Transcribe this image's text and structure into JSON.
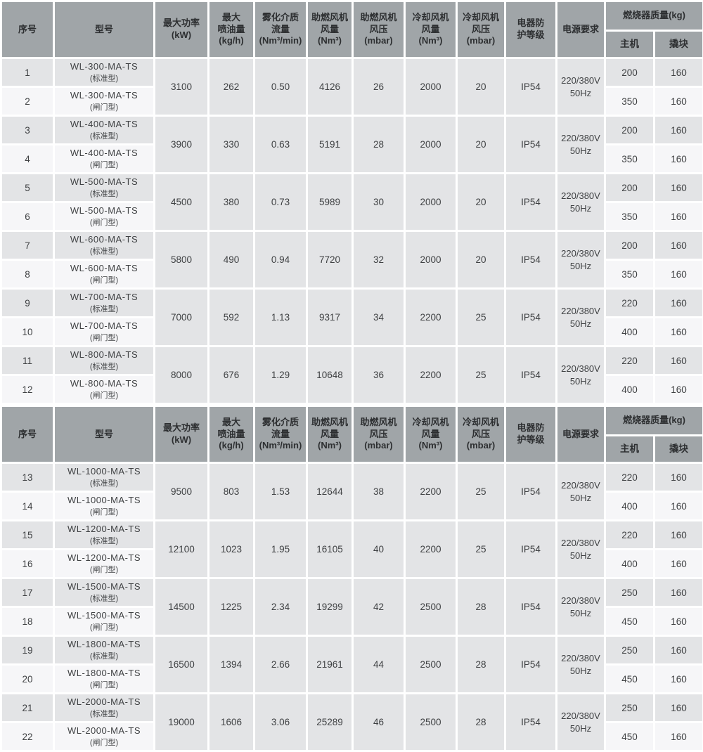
{
  "colors": {
    "header_bg": "#a0a5a8",
    "header_text": "#2d2f31",
    "row_odd_bg": "#e3e4e6",
    "row_even_bg": "#f6f6f8",
    "cell_text": "#3f4143",
    "border": "#ffffff",
    "page_bg": "#ffffff"
  },
  "header": {
    "columns": [
      {
        "key": "seq",
        "lines": [
          "序号"
        ]
      },
      {
        "key": "model",
        "lines": [
          "型号"
        ]
      },
      {
        "key": "power",
        "lines": [
          "最大功率",
          "(kW)"
        ]
      },
      {
        "key": "oil",
        "lines": [
          "最大",
          "喷油量",
          "(kg/h)"
        ]
      },
      {
        "key": "atomizing",
        "lines": [
          "雾化介质",
          "流量",
          "(Nm³/min)"
        ]
      },
      {
        "key": "comb_air",
        "lines": [
          "助燃风机",
          "风量",
          "(Nm³)"
        ]
      },
      {
        "key": "comb_press",
        "lines": [
          "助燃风机",
          "风压",
          "(mbar)"
        ]
      },
      {
        "key": "cool_air",
        "lines": [
          "冷却风机",
          "风量",
          "(Nm³)"
        ]
      },
      {
        "key": "cool_press",
        "lines": [
          "冷却风机",
          "风压",
          "(mbar)"
        ]
      },
      {
        "key": "ip",
        "lines": [
          "电器防",
          "护等级"
        ]
      },
      {
        "key": "psu",
        "lines": [
          "电源要求"
        ]
      },
      {
        "key": "weight",
        "lines": [
          "燃烧器质量(kg)"
        ],
        "sub": [
          "主机",
          "撬块"
        ]
      }
    ]
  },
  "sections": [
    {
      "groups": [
        {
          "rows": [
            {
              "seq": "1",
              "model": "WL-300-MA-TS",
              "variant": "(标准型)",
              "main": "200",
              "skid": "160"
            },
            {
              "seq": "2",
              "model": "WL-300-MA-TS",
              "variant": "(闸门型)",
              "main": "350",
              "skid": "160"
            }
          ],
          "merged": {
            "power": "3100",
            "oil": "262",
            "atomizing": "0.50",
            "comb_air": "4126",
            "comb_press": "26",
            "cool_air": "2000",
            "cool_press": "20",
            "ip": "IP54",
            "psu_lines": [
              "220/380V",
              "50Hz"
            ]
          }
        },
        {
          "rows": [
            {
              "seq": "3",
              "model": "WL-400-MA-TS",
              "variant": "(标准型)",
              "main": "200",
              "skid": "160"
            },
            {
              "seq": "4",
              "model": "WL-400-MA-TS",
              "variant": "(闸门型)",
              "main": "350",
              "skid": "160"
            }
          ],
          "merged": {
            "power": "3900",
            "oil": "330",
            "atomizing": "0.63",
            "comb_air": "5191",
            "comb_press": "28",
            "cool_air": "2000",
            "cool_press": "20",
            "ip": "IP54",
            "psu_lines": [
              "220/380V",
              "50Hz"
            ]
          }
        },
        {
          "rows": [
            {
              "seq": "5",
              "model": "WL-500-MA-TS",
              "variant": "(标准型)",
              "main": "200",
              "skid": "160"
            },
            {
              "seq": "6",
              "model": "WL-500-MA-TS",
              "variant": "(闸门型)",
              "main": "350",
              "skid": "160"
            }
          ],
          "merged": {
            "power": "4500",
            "oil": "380",
            "atomizing": "0.73",
            "comb_air": "5989",
            "comb_press": "30",
            "cool_air": "2000",
            "cool_press": "20",
            "ip": "IP54",
            "psu_lines": [
              "220/380V",
              "50Hz"
            ]
          }
        },
        {
          "rows": [
            {
              "seq": "7",
              "model": "WL-600-MA-TS",
              "variant": "(标准型)",
              "main": "200",
              "skid": "160"
            },
            {
              "seq": "8",
              "model": "WL-600-MA-TS",
              "variant": "(闸门型)",
              "main": "350",
              "skid": "160"
            }
          ],
          "merged": {
            "power": "5800",
            "oil": "490",
            "atomizing": "0.94",
            "comb_air": "7720",
            "comb_press": "32",
            "cool_air": "2000",
            "cool_press": "20",
            "ip": "IP54",
            "psu_lines": [
              "220/380V",
              "50Hz"
            ]
          }
        },
        {
          "rows": [
            {
              "seq": "9",
              "model": "WL-700-MA-TS",
              "variant": "(标准型)",
              "main": "220",
              "skid": "160"
            },
            {
              "seq": "10",
              "model": "WL-700-MA-TS",
              "variant": "(闸门型)",
              "main": "400",
              "skid": "160"
            }
          ],
          "merged": {
            "power": "7000",
            "oil": "592",
            "atomizing": "1.13",
            "comb_air": "9317",
            "comb_press": "34",
            "cool_air": "2200",
            "cool_press": "25",
            "ip": "IP54",
            "psu_lines": [
              "220/380V",
              "50Hz"
            ]
          }
        },
        {
          "rows": [
            {
              "seq": "11",
              "model": "WL-800-MA-TS",
              "variant": "(标准型)",
              "main": "220",
              "skid": "160"
            },
            {
              "seq": "12",
              "model": "WL-800-MA-TS",
              "variant": "(闸门型)",
              "main": "400",
              "skid": "160"
            }
          ],
          "merged": {
            "power": "8000",
            "oil": "676",
            "atomizing": "1.29",
            "comb_air": "10648",
            "comb_press": "36",
            "cool_air": "2200",
            "cool_press": "25",
            "ip": "IP54",
            "psu_lines": [
              "220/380V",
              "50Hz"
            ]
          }
        }
      ]
    },
    {
      "groups": [
        {
          "rows": [
            {
              "seq": "13",
              "model": "WL-1000-MA-TS",
              "variant": "(标准型)",
              "main": "220",
              "skid": "160"
            },
            {
              "seq": "14",
              "model": "WL-1000-MA-TS",
              "variant": "(闸门型)",
              "main": "400",
              "skid": "160"
            }
          ],
          "merged": {
            "power": "9500",
            "oil": "803",
            "atomizing": "1.53",
            "comb_air": "12644",
            "comb_press": "38",
            "cool_air": "2200",
            "cool_press": "25",
            "ip": "IP54",
            "psu_lines": [
              "220/380V",
              "50Hz"
            ]
          }
        },
        {
          "rows": [
            {
              "seq": "15",
              "model": "WL-1200-MA-TS",
              "variant": "(标准型)",
              "main": "220",
              "skid": "160"
            },
            {
              "seq": "16",
              "model": "WL-1200-MA-TS",
              "variant": "(闸门型)",
              "main": "400",
              "skid": "160"
            }
          ],
          "merged": {
            "power": "12100",
            "oil": "1023",
            "atomizing": "1.95",
            "comb_air": "16105",
            "comb_press": "40",
            "cool_air": "2200",
            "cool_press": "25",
            "ip": "IP54",
            "psu_lines": [
              "220/380V",
              "50Hz"
            ]
          }
        },
        {
          "rows": [
            {
              "seq": "17",
              "model": "WL-1500-MA-TS",
              "variant": "(标准型)",
              "main": "250",
              "skid": "160"
            },
            {
              "seq": "18",
              "model": "WL-1500-MA-TS",
              "variant": "(闸门型)",
              "main": "450",
              "skid": "160"
            }
          ],
          "merged": {
            "power": "14500",
            "oil": "1225",
            "atomizing": "2.34",
            "comb_air": "19299",
            "comb_press": "42",
            "cool_air": "2500",
            "cool_press": "28",
            "ip": "IP54",
            "psu_lines": [
              "220/380V",
              "50Hz"
            ]
          }
        },
        {
          "rows": [
            {
              "seq": "19",
              "model": "WL-1800-MA-TS",
              "variant": "(标准型)",
              "main": "250",
              "skid": "160"
            },
            {
              "seq": "20",
              "model": "WL-1800-MA-TS",
              "variant": "(闸门型)",
              "main": "450",
              "skid": "160"
            }
          ],
          "merged": {
            "power": "16500",
            "oil": "1394",
            "atomizing": "2.66",
            "comb_air": "21961",
            "comb_press": "44",
            "cool_air": "2500",
            "cool_press": "28",
            "ip": "IP54",
            "psu_lines": [
              "220/380V",
              "50Hz"
            ]
          }
        },
        {
          "rows": [
            {
              "seq": "21",
              "model": "WL-2000-MA-TS",
              "variant": "(标准型)",
              "main": "250",
              "skid": "160"
            },
            {
              "seq": "22",
              "model": "WL-2000-MA-TS",
              "variant": "(闸门型)",
              "main": "450",
              "skid": "160"
            }
          ],
          "merged": {
            "power": "19000",
            "oil": "1606",
            "atomizing": "3.06",
            "comb_air": "25289",
            "comb_press": "46",
            "cool_air": "2500",
            "cool_press": "28",
            "ip": "IP54",
            "psu_lines": [
              "220/380V",
              "50Hz"
            ]
          }
        }
      ]
    }
  ]
}
